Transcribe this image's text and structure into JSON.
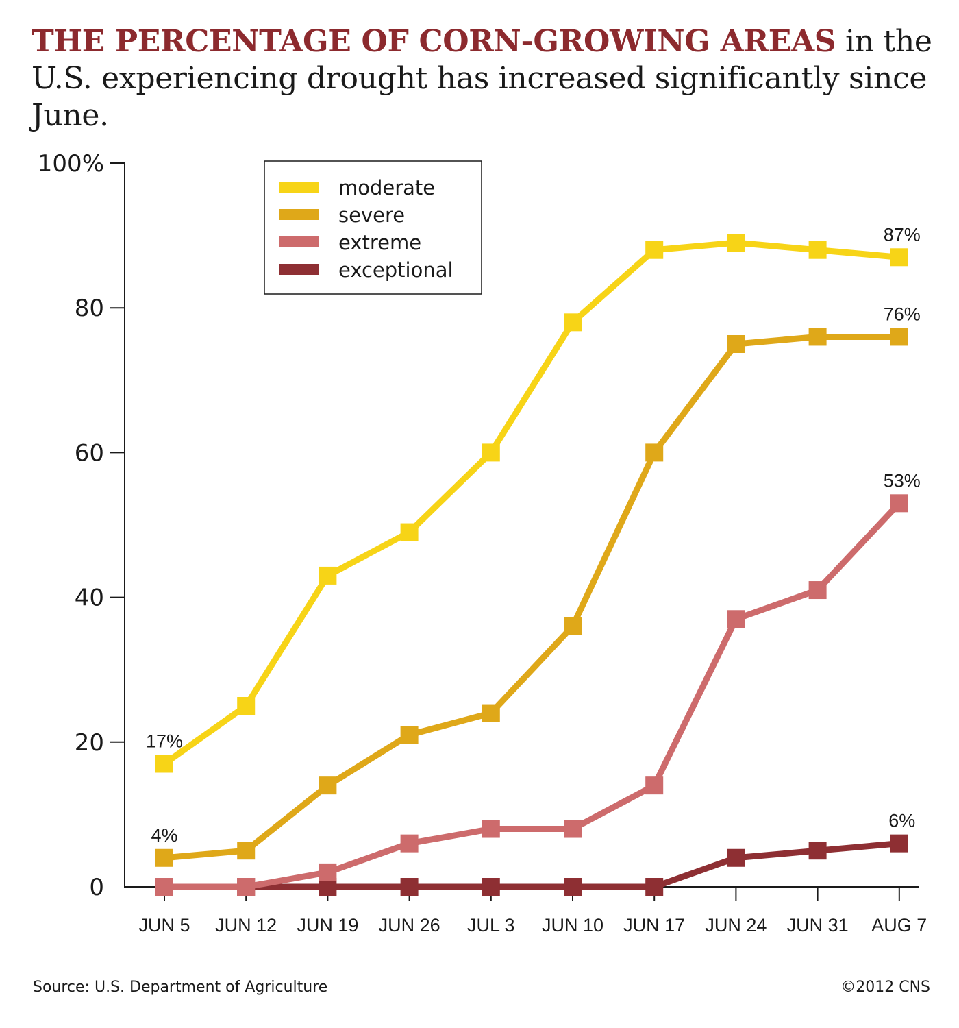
{
  "title": {
    "highlight": "THE PERCENTAGE OF CORN-GROWING AREAS",
    "rest": " in the U.S. experiencing drought has increased significantly since June."
  },
  "footer": {
    "source": "Source: U.S. Department of Agriculture",
    "copyright": "©2012 CNS"
  },
  "chart_data": {
    "type": "line",
    "categories": [
      "JUN 5",
      "JUN 12",
      "JUN 19",
      "JUN 26",
      "JUL 3",
      "JUN 10",
      "JUN 17",
      "JUN 24",
      "JUN 31",
      "AUG 7"
    ],
    "y_ticks": [
      "100%",
      "80",
      "60",
      "40",
      "20",
      "0"
    ],
    "ylim": [
      0,
      100
    ],
    "legend_position": "top-center",
    "grid": false,
    "series": [
      {
        "name": "moderate",
        "color": "#f7d417",
        "values": [
          17,
          25,
          43,
          49,
          60,
          78,
          88,
          89,
          88,
          87
        ]
      },
      {
        "name": "severe",
        "color": "#dfa819",
        "values": [
          4,
          5,
          14,
          21,
          24,
          36,
          60,
          75,
          76,
          76
        ]
      },
      {
        "name": "extreme",
        "color": "#cd6b6c",
        "values": [
          0,
          0,
          2,
          6,
          8,
          8,
          14,
          37,
          41,
          53
        ]
      },
      {
        "name": "exceptional",
        "color": "#8e2f33",
        "values": [
          0,
          0,
          0,
          0,
          0,
          0,
          0,
          4,
          5,
          6
        ]
      }
    ],
    "annotations": [
      {
        "text": "17%",
        "series": 0,
        "index": 0
      },
      {
        "text": "87%",
        "series": 0,
        "index": 9
      },
      {
        "text": "4%",
        "series": 1,
        "index": 0
      },
      {
        "text": "76%",
        "series": 1,
        "index": 9
      },
      {
        "text": "53%",
        "series": 2,
        "index": 9
      },
      {
        "text": "6%",
        "series": 3,
        "index": 9
      }
    ]
  }
}
